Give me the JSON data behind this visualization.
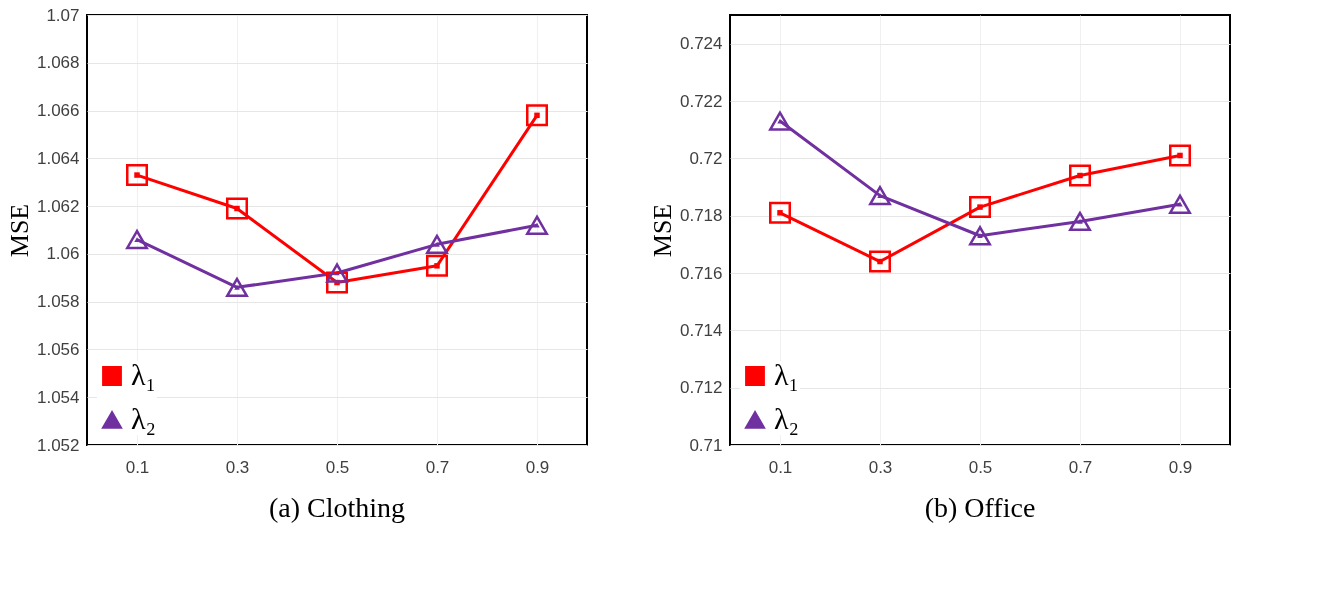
{
  "chart_data": [
    {
      "type": "line",
      "title": "(a)  Clothing",
      "ylabel": "MSE",
      "categories": [
        "0.1",
        "0.3",
        "0.5",
        "0.7",
        "0.9"
      ],
      "series": [
        {
          "name": "λ₁",
          "color": "#ff0000",
          "marker": "square",
          "values": [
            1.0633,
            1.0619,
            1.0588,
            1.0595,
            1.0658
          ]
        },
        {
          "name": "λ₂",
          "color": "#7030a0",
          "marker": "triangle",
          "values": [
            1.0606,
            1.0586,
            1.0592,
            1.0604,
            1.0612
          ]
        }
      ],
      "ylim": [
        1.052,
        1.07
      ],
      "yticks": [
        1.052,
        1.054,
        1.056,
        1.058,
        1.06,
        1.062,
        1.064,
        1.066,
        1.068,
        1.07
      ],
      "grid": true,
      "legend": "bottom left"
    },
    {
      "type": "line",
      "title": "(b)  Office",
      "ylabel": "MSE",
      "categories": [
        "0.1",
        "0.3",
        "0.5",
        "0.7",
        "0.9"
      ],
      "series": [
        {
          "name": "λ₁",
          "color": "#ff0000",
          "marker": "square",
          "values": [
            0.7181,
            0.7164,
            0.7183,
            0.7194,
            0.7201
          ]
        },
        {
          "name": "λ₂",
          "color": "#7030a0",
          "marker": "triangle",
          "values": [
            0.7213,
            0.7187,
            0.7173,
            0.7178,
            0.7184
          ]
        }
      ],
      "ylim": [
        0.71,
        0.725
      ],
      "yticks": [
        0.71,
        0.712,
        0.714,
        0.716,
        0.718,
        0.72,
        0.722,
        0.724
      ],
      "grid": true,
      "legend": "bottom left"
    }
  ]
}
